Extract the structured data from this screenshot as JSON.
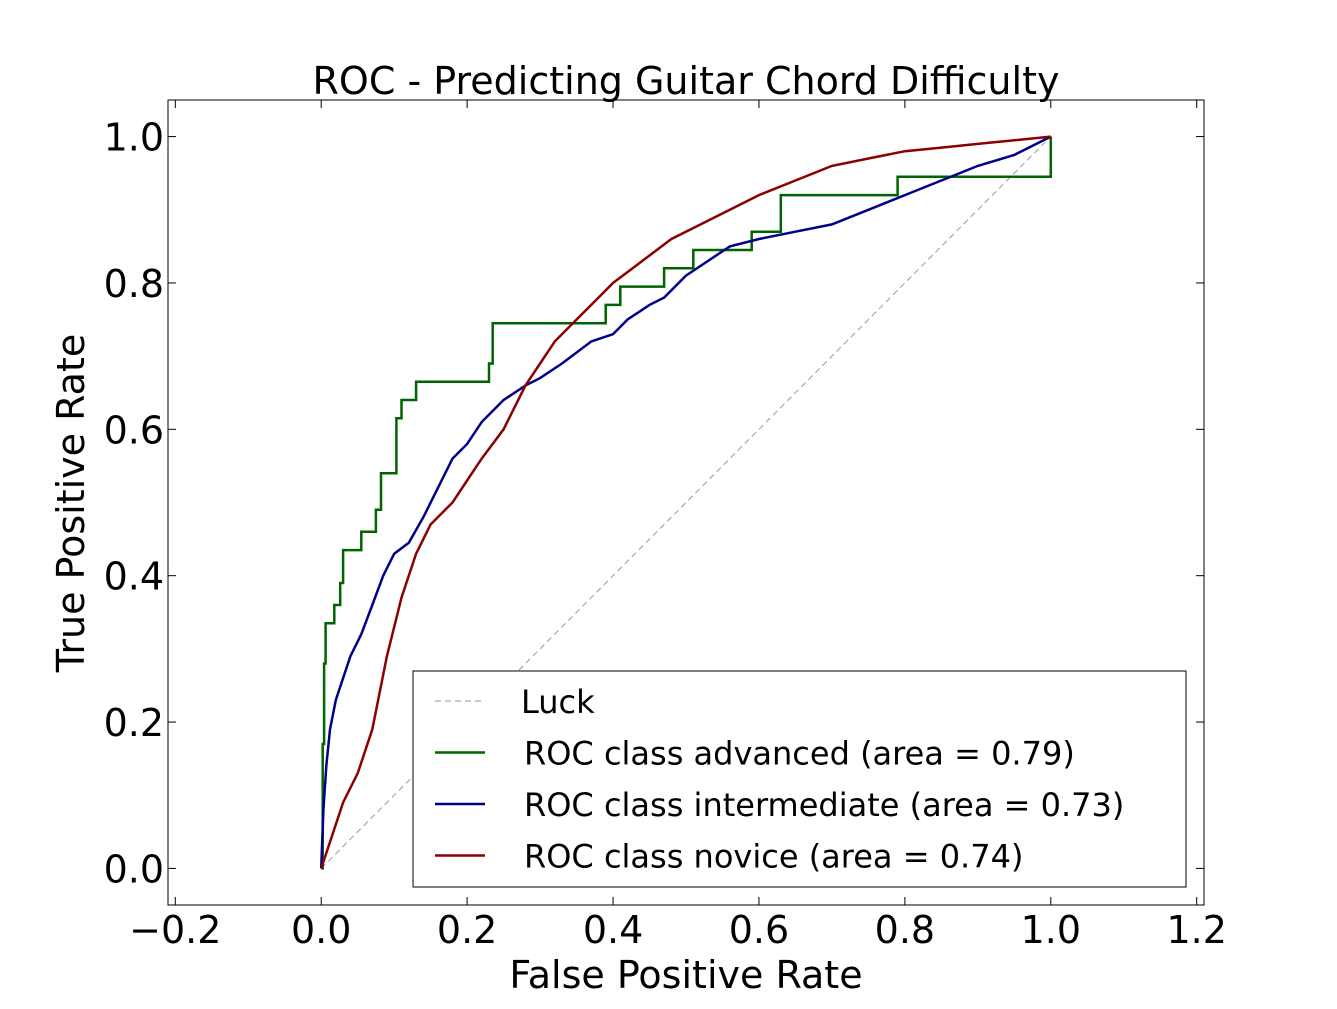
{
  "chart_data": {
    "type": "line",
    "title": "ROC - Predicting Guitar Chord Difficulty",
    "xlabel": "False Positive Rate",
    "ylabel": "True Positive Rate",
    "xlim": [
      -0.21,
      1.21
    ],
    "ylim": [
      -0.05,
      1.05
    ],
    "x_ticks": [
      -0.2,
      0.0,
      0.2,
      0.4,
      0.6,
      0.8,
      1.0,
      1.2
    ],
    "x_tick_labels": [
      "−0.2",
      "0.0",
      "0.2",
      "0.4",
      "0.6",
      "0.8",
      "1.0",
      "1.2"
    ],
    "y_ticks": [
      0.0,
      0.2,
      0.4,
      0.6,
      0.8,
      1.0
    ],
    "y_tick_labels": [
      "0.0",
      "0.2",
      "0.4",
      "0.6",
      "0.8",
      "1.0"
    ],
    "grid": false,
    "legend_position": "lower-right",
    "series": [
      {
        "name": "Luck",
        "color": "#999999",
        "dash": true,
        "x": [
          0.0,
          1.0
        ],
        "y": [
          0.0,
          1.0
        ]
      },
      {
        "name": "ROC class advanced (area = 0.79)",
        "color": "#006400",
        "x": [
          0.0,
          0.002,
          0.002,
          0.004,
          0.004,
          0.006,
          0.006,
          0.018,
          0.018,
          0.026,
          0.026,
          0.03,
          0.03,
          0.055,
          0.055,
          0.075,
          0.075,
          0.082,
          0.082,
          0.103,
          0.103,
          0.11,
          0.11,
          0.13,
          0.13,
          0.23,
          0.23,
          0.235,
          0.235,
          0.39,
          0.39,
          0.41,
          0.41,
          0.47,
          0.47,
          0.51,
          0.51,
          0.59,
          0.59,
          0.63,
          0.63,
          0.79,
          0.79,
          1.0,
          1.0
        ],
        "y": [
          0.0,
          0.0,
          0.17,
          0.17,
          0.28,
          0.28,
          0.335,
          0.335,
          0.36,
          0.36,
          0.39,
          0.39,
          0.435,
          0.435,
          0.46,
          0.46,
          0.49,
          0.49,
          0.54,
          0.54,
          0.615,
          0.615,
          0.64,
          0.64,
          0.665,
          0.665,
          0.69,
          0.69,
          0.745,
          0.745,
          0.77,
          0.77,
          0.795,
          0.795,
          0.82,
          0.82,
          0.845,
          0.845,
          0.87,
          0.87,
          0.92,
          0.92,
          0.945,
          0.945,
          1.0
        ]
      },
      {
        "name": "ROC class intermediate (area = 0.73)",
        "color": "#00008b",
        "x": [
          0.0,
          0.003,
          0.007,
          0.012,
          0.02,
          0.03,
          0.04,
          0.055,
          0.07,
          0.085,
          0.1,
          0.12,
          0.14,
          0.16,
          0.18,
          0.2,
          0.22,
          0.25,
          0.28,
          0.3,
          0.33,
          0.37,
          0.4,
          0.42,
          0.45,
          0.47,
          0.5,
          0.53,
          0.56,
          0.6,
          0.65,
          0.7,
          0.75,
          0.8,
          0.85,
          0.9,
          0.95,
          1.0
        ],
        "y": [
          0.0,
          0.08,
          0.14,
          0.19,
          0.23,
          0.26,
          0.29,
          0.32,
          0.36,
          0.4,
          0.43,
          0.445,
          0.48,
          0.52,
          0.56,
          0.58,
          0.61,
          0.64,
          0.66,
          0.67,
          0.69,
          0.72,
          0.73,
          0.75,
          0.77,
          0.78,
          0.81,
          0.83,
          0.85,
          0.86,
          0.87,
          0.88,
          0.9,
          0.92,
          0.94,
          0.96,
          0.975,
          1.0
        ]
      },
      {
        "name": "ROC class novice (area = 0.74)",
        "color": "#8b0000",
        "x": [
          0.0,
          0.01,
          0.02,
          0.03,
          0.05,
          0.07,
          0.08,
          0.09,
          0.1,
          0.11,
          0.13,
          0.15,
          0.18,
          0.2,
          0.22,
          0.25,
          0.28,
          0.3,
          0.32,
          0.35,
          0.38,
          0.4,
          0.44,
          0.48,
          0.52,
          0.56,
          0.6,
          0.65,
          0.7,
          0.75,
          0.8,
          0.85,
          0.9,
          0.95,
          1.0
        ],
        "y": [
          0.0,
          0.03,
          0.06,
          0.09,
          0.13,
          0.19,
          0.24,
          0.29,
          0.33,
          0.37,
          0.43,
          0.47,
          0.5,
          0.53,
          0.56,
          0.6,
          0.66,
          0.69,
          0.72,
          0.75,
          0.78,
          0.8,
          0.83,
          0.86,
          0.88,
          0.9,
          0.92,
          0.94,
          0.96,
          0.97,
          0.98,
          0.985,
          0.99,
          0.995,
          1.0
        ]
      }
    ]
  }
}
